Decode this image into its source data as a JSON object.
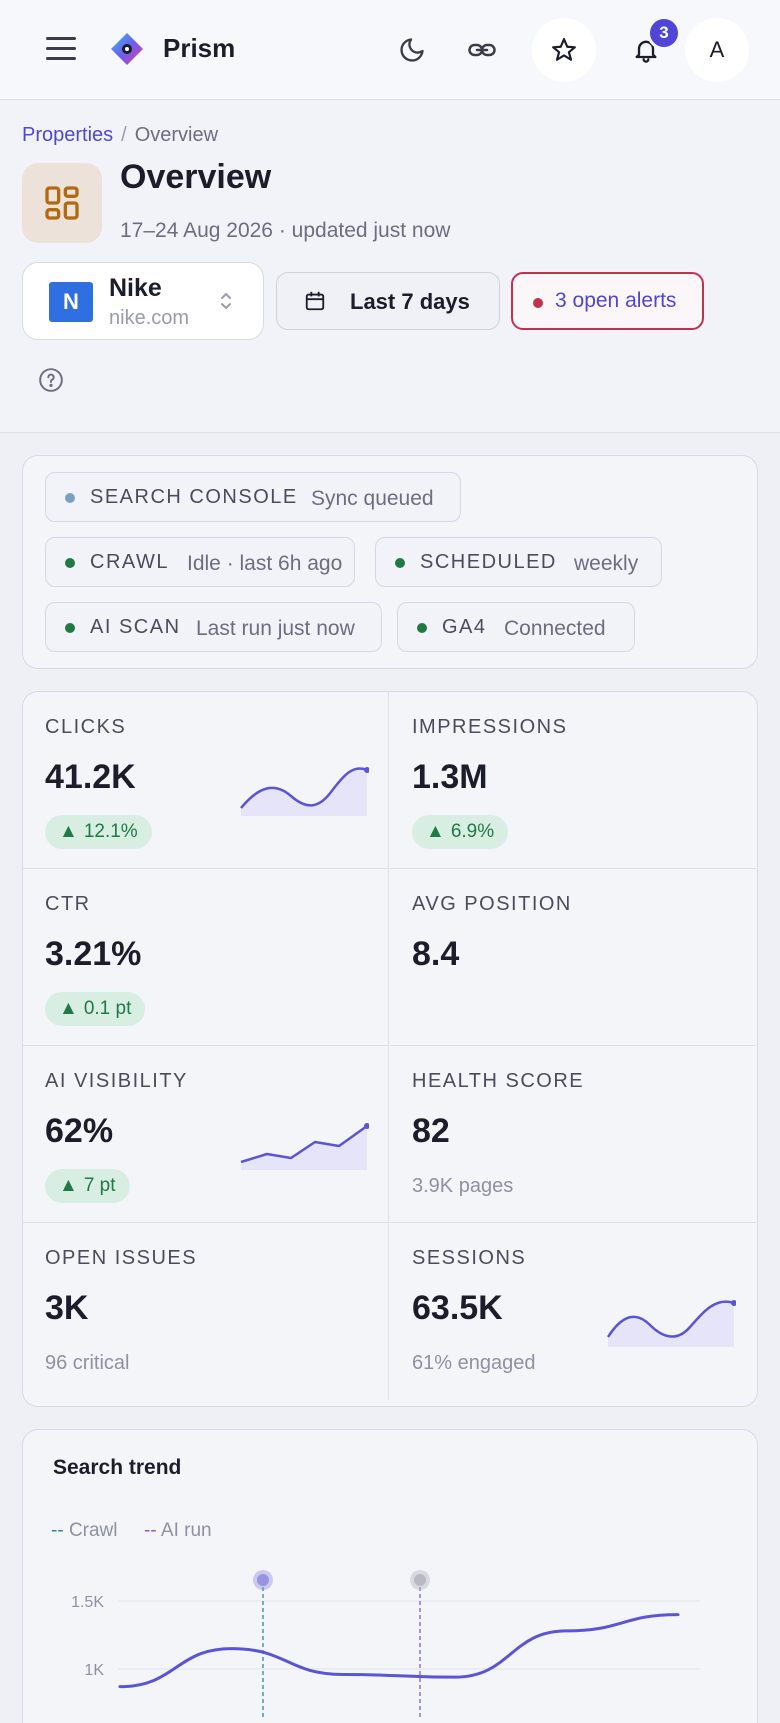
{
  "app": {
    "name": "Prism",
    "notification_count": "3",
    "avatar_initial": "A"
  },
  "breadcrumb": {
    "parent": "Properties",
    "separator": "/",
    "current": "Overview"
  },
  "page": {
    "title": "Overview",
    "subtitle": "17–24 Aug 2026 · updated just now"
  },
  "property": {
    "logo_letter": "N",
    "name": "Nike",
    "domain": "nike.com"
  },
  "range": {
    "label": "Last 7 days"
  },
  "alerts": {
    "label": "3 open alerts"
  },
  "integrations": [
    {
      "name": "SEARCH CONSOLE",
      "status": "Sync queued",
      "color": "#7aa0c0"
    },
    {
      "name": "CRAWL",
      "status": "Idle · last 6h ago",
      "color": "#1f7a45"
    },
    {
      "name": "SCHEDULED",
      "status": "weekly",
      "color": "#1f7a45"
    },
    {
      "name": "AI SCAN",
      "status": "Last run just now",
      "color": "#1f7a45"
    },
    {
      "name": "GA4",
      "status": "Connected",
      "color": "#1f7a45"
    }
  ],
  "kpis": [
    {
      "label": "CLICKS",
      "value": "41.2K",
      "delta": "12.1%",
      "delta_icon": "up-triangle-icon"
    },
    {
      "label": "IMPRESSIONS",
      "value": "1.3M",
      "delta": "6.9%",
      "delta_icon": "up-triangle-icon"
    },
    {
      "label": "CTR",
      "value": "3.21%",
      "delta": "0.1 pt",
      "delta_icon": "up-triangle-icon"
    },
    {
      "label": "AVG POSITION",
      "value": "8.4"
    },
    {
      "label": "AI VISIBILITY",
      "value": "62%",
      "delta": "7 pt",
      "delta_icon": "up-triangle-icon"
    },
    {
      "label": "HEALTH SCORE",
      "value": "82",
      "note": "3.9K pages"
    },
    {
      "label": "OPEN ISSUES",
      "value": "3K",
      "note": "96 critical"
    },
    {
      "label": "SESSIONS",
      "value": "63.5K",
      "note": "61% engaged"
    }
  ],
  "trend": {
    "title": "Search trend",
    "legend": [
      {
        "label": "Crawl",
        "color": "#2a8a9a"
      },
      {
        "label": "AI run",
        "color": "#8a5ad0"
      }
    ]
  },
  "colors": {
    "accent": "#4f46d8",
    "alert": "#c0334c",
    "positive": "#1f7a45",
    "spark": "#5b54d6"
  },
  "chart_data": {
    "type": "line",
    "title": "Search trend",
    "xlabel": "",
    "ylabel": "",
    "yticks": [
      "1.5K",
      "1K"
    ],
    "series": [
      {
        "values": [
          870,
          1150,
          960,
          940,
          1280,
          1400
        ]
      }
    ],
    "annotations": [
      "Crawl",
      "AI run"
    ],
    "legend_position": "top-left"
  }
}
